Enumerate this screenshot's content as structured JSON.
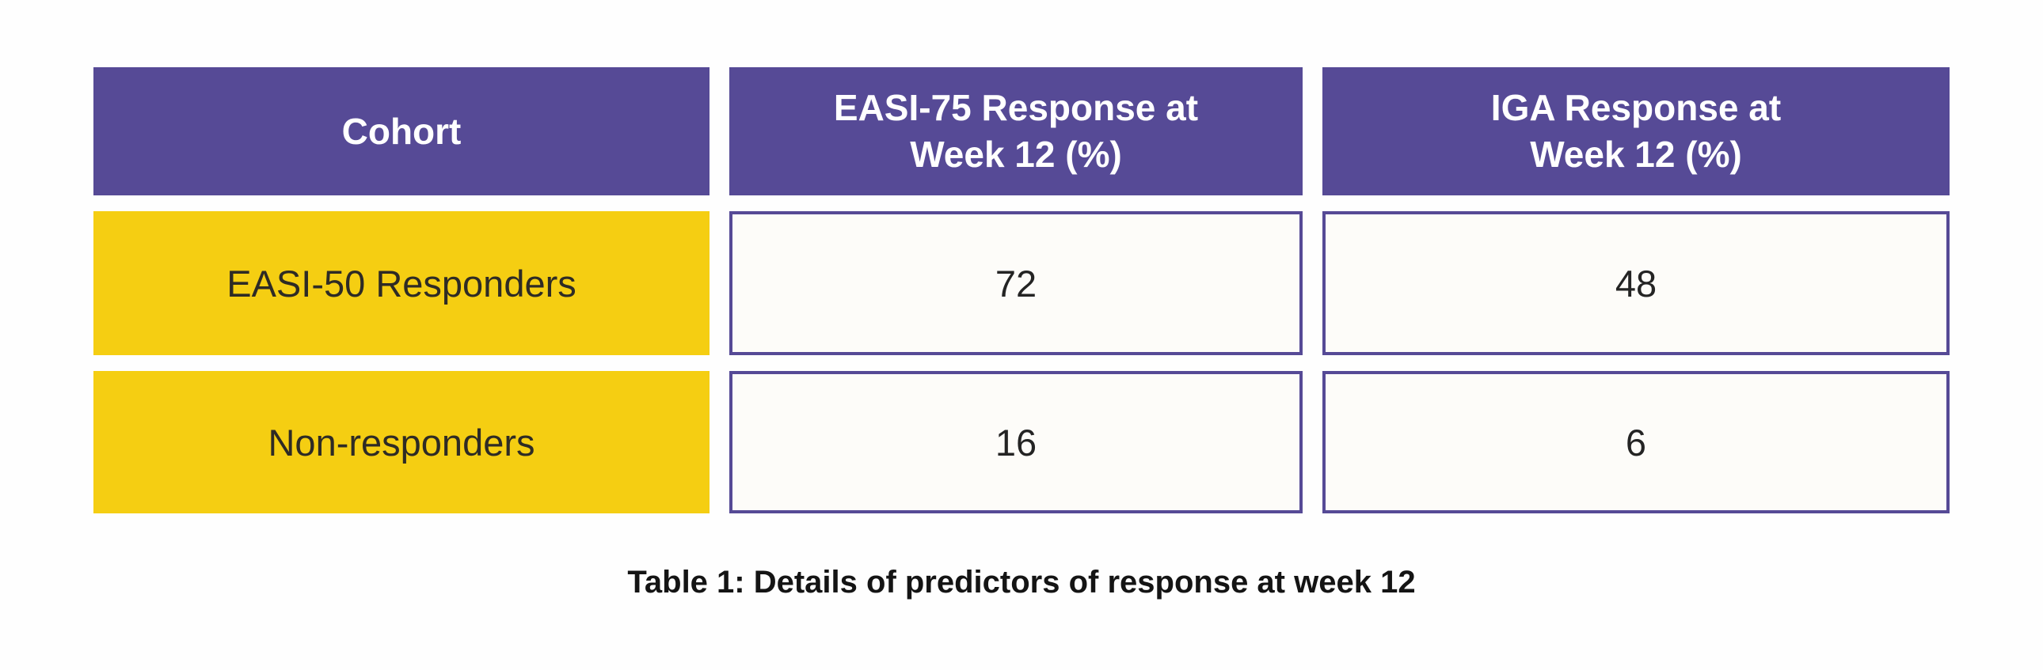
{
  "table": {
    "headers": [
      "Cohort",
      "EASI-75 Response at\nWeek 12 (%)",
      "IGA Response at\nWeek 12 (%)"
    ],
    "rows": [
      {
        "cohort": "EASI-50 Responders",
        "easi75": "72",
        "iga": "48"
      },
      {
        "cohort": "Non-responders",
        "easi75": "16",
        "iga": "6"
      }
    ],
    "colors": {
      "page_bg": "#fefefe",
      "header_bg": "#564a96",
      "header_text": "#ffffff",
      "row_label_bg": "#f5ce12",
      "row_label_text": "#2e2b25",
      "cell_bg": "#fdfcf9",
      "cell_border": "#564a96",
      "cell_text": "#242424"
    }
  },
  "caption": "Table 1: Details of predictors of response at week 12",
  "chart_data": {
    "type": "table",
    "title": "Table 1: Details of predictors of response at week 12",
    "columns": [
      "Cohort",
      "EASI-75 Response at Week 12 (%)",
      "IGA Response at Week 12 (%)"
    ],
    "rows": [
      [
        "EASI-50 Responders",
        72,
        48
      ],
      [
        "Non-responders",
        16,
        6
      ]
    ],
    "legend": "none",
    "notes": "Purple header row; yellow cohort label cells; white value cells with purple borders; bold black caption centered below table"
  }
}
